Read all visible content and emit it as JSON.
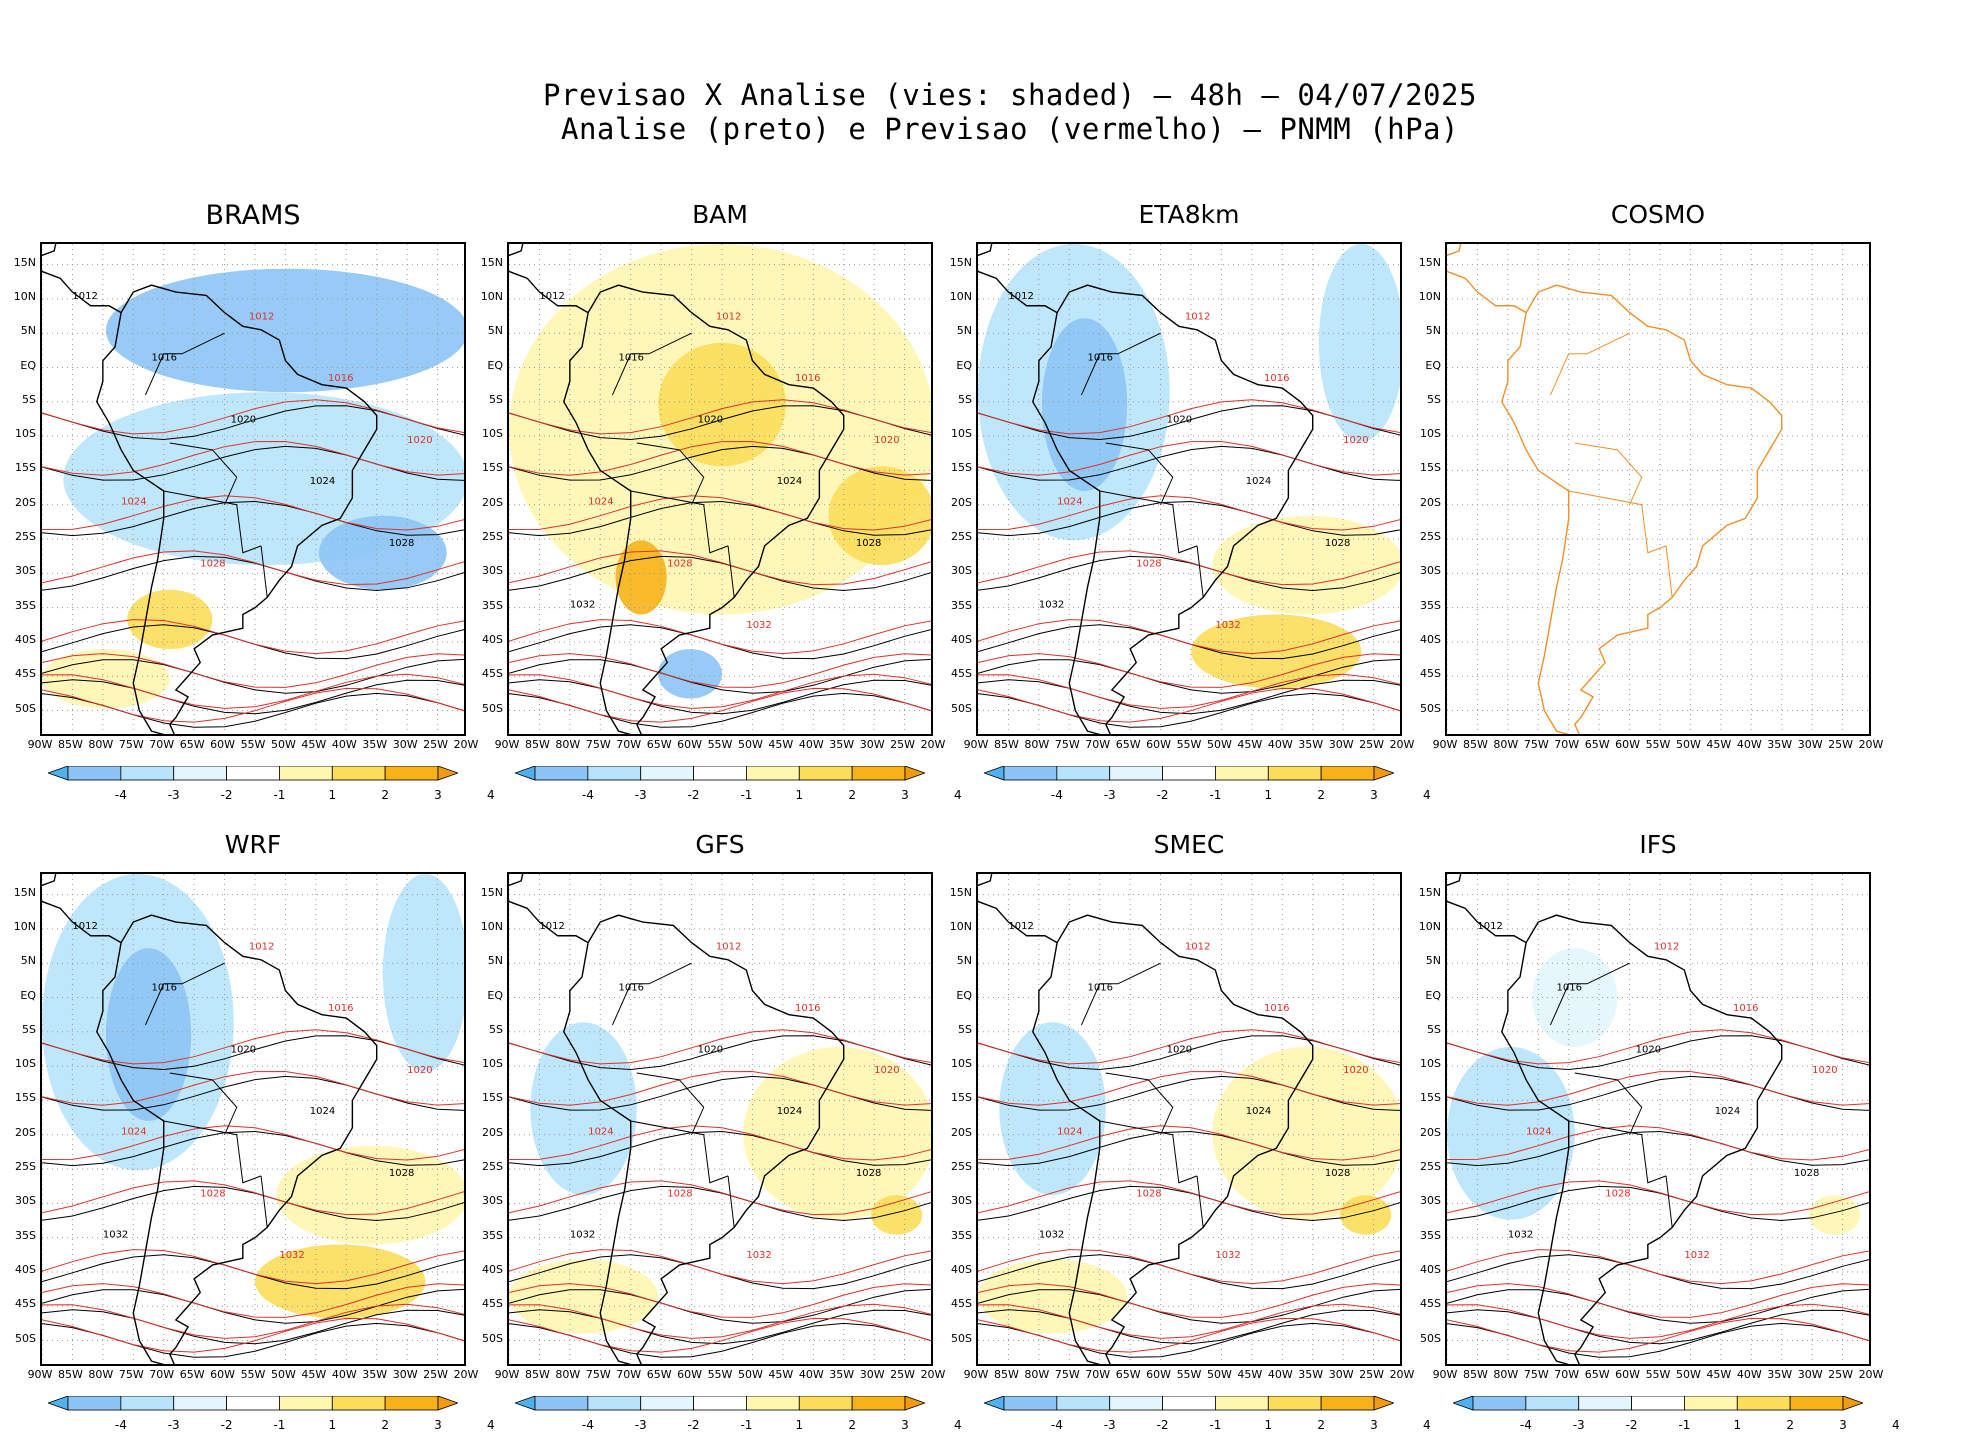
{
  "title_line1": "Previsao X Analise (vies: shaded) – 48h – 04/07/2025",
  "title_line2": "Analise (preto) e Previsao (vermelho) – PNMM (hPa)",
  "lat_labels": [
    "15N",
    "10N",
    "5N",
    "EQ",
    "5S",
    "10S",
    "15S",
    "20S",
    "25S",
    "30S",
    "35S",
    "40S",
    "45S",
    "50S"
  ],
  "lon_labels": [
    "90W",
    "85W",
    "80W",
    "75W",
    "70W",
    "65W",
    "60W",
    "55W",
    "50W",
    "45W",
    "40W",
    "35W",
    "30W",
    "25W",
    "20W"
  ],
  "colorbar": {
    "labels": [
      "-4",
      "-3",
      "-2",
      "-1",
      "1",
      "2",
      "3",
      "4"
    ],
    "colors": [
      "#4fb0f0",
      "#8cc4f5",
      "#b8e4fb",
      "#e2f6fd",
      "#ffffff",
      "#fff6b0",
      "#fbdd5a",
      "#f7b21a",
      "#f29a10"
    ]
  },
  "panels": [
    {
      "name": "BRAMS",
      "bias": "cold",
      "contours": [
        "1012",
        "1016",
        "1020",
        "1024",
        "1028"
      ]
    },
    {
      "name": "BAM",
      "bias": "warm",
      "contours": [
        "1012",
        "1016",
        "1020",
        "1024",
        "1028",
        "1032"
      ]
    },
    {
      "name": "ETA8km",
      "bias": "mixed",
      "contours": [
        "1012",
        "1016",
        "1020",
        "1024",
        "1028",
        "1032"
      ]
    },
    {
      "name": "COSMO",
      "bias": "none",
      "contours": []
    },
    {
      "name": "WRF",
      "bias": "mixed",
      "contours": [
        "1012",
        "1016",
        "1020",
        "1024",
        "1028",
        "1032"
      ]
    },
    {
      "name": "GFS",
      "bias": "warm-light",
      "contours": [
        "1012",
        "1016",
        "1020",
        "1024",
        "1028",
        "1032"
      ]
    },
    {
      "name": "SMEC",
      "bias": "warm-light",
      "contours": [
        "1012",
        "1016",
        "1020",
        "1024",
        "1028",
        "1032"
      ]
    },
    {
      "name": "IFS",
      "bias": "light",
      "contours": [
        "1012",
        "1016",
        "1020",
        "1024",
        "1028",
        "1032"
      ]
    }
  ],
  "colors": {
    "analysis": "#000000",
    "forecast": "#e0302a",
    "coast_cosmo": "#f0902a",
    "grid": "#9a9a9a"
  }
}
